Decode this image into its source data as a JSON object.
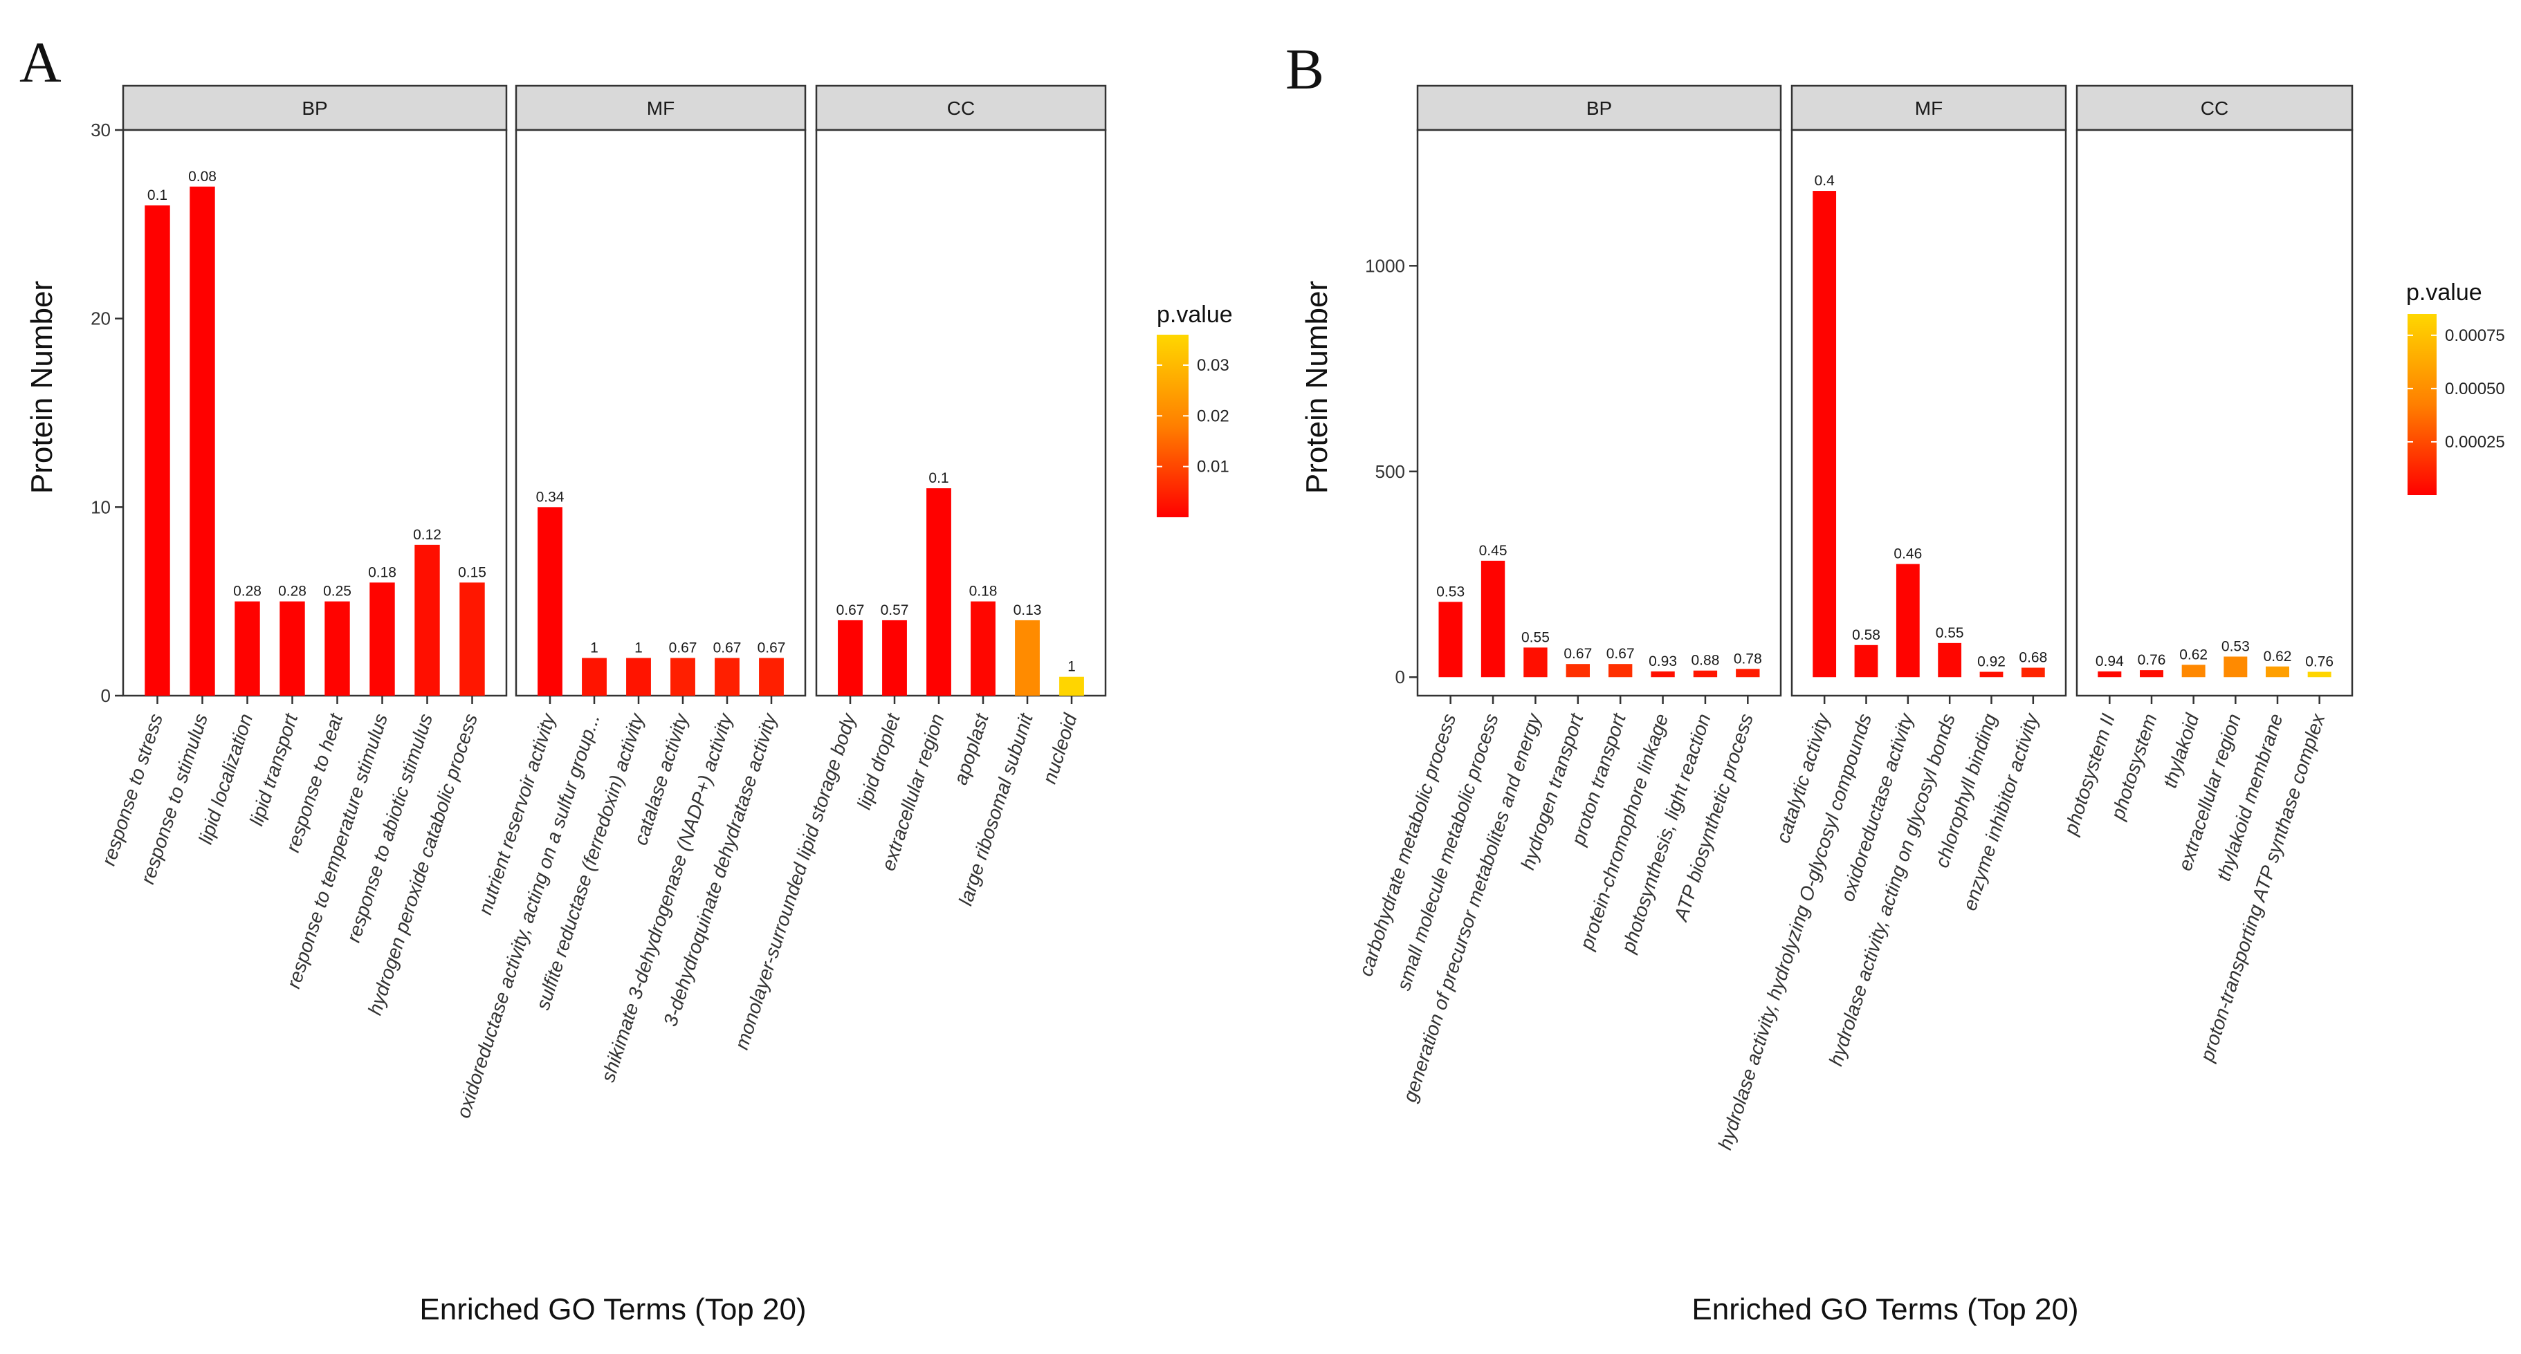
{
  "chart_data": [
    {
      "type": "bar",
      "panel_label": "A",
      "xlabel": "Enriched GO Terms (Top 20)",
      "ylabel": "Protein Number",
      "ylim": [
        0,
        30
      ],
      "yticks": [
        0,
        10,
        20,
        30
      ],
      "legend": {
        "title": "p.value",
        "ticks": [
          0.01,
          0.02,
          0.03
        ],
        "tick_labels": [
          "0.01",
          "0.02",
          "0.03"
        ],
        "range": [
          0.0,
          0.036
        ]
      },
      "facets": [
        {
          "name": "BP",
          "categories": [
            "response to stress",
            "response to stimulus",
            "lipid localization",
            "lipid transport",
            "response to heat",
            "response to temperature stimulus",
            "response to abiotic stimulus",
            "hydrogen peroxide catabolic process"
          ],
          "values": [
            26,
            27,
            5,
            5,
            5,
            6,
            8,
            6
          ],
          "labels": [
            "0.1",
            "0.08",
            "0.28",
            "0.28",
            "0.25",
            "0.18",
            "0.12",
            "0.15"
          ],
          "pvalues": [
            0.0001,
            0.0001,
            0.0003,
            0.0003,
            0.0004,
            0.0006,
            0.0021,
            0.0032
          ]
        },
        {
          "name": "MF",
          "categories": [
            "nutrient reservoir activity",
            "oxidoreductase activity, acting on a sulfur group...",
            "sulfite reductase (ferredoxin) activity",
            "catalase activity",
            "shikimate 3-dehydrogenase (NADP+) activity",
            "3-dehydroquinate dehydratase activity"
          ],
          "values": [
            10,
            2,
            2,
            2,
            2,
            2
          ],
          "labels": [
            "0.34",
            "1",
            "1",
            "0.67",
            "0.67",
            "0.67"
          ],
          "pvalues": [
            0.0002,
            0.0028,
            0.0028,
            0.0044,
            0.0044,
            0.0044
          ]
        },
        {
          "name": "CC",
          "categories": [
            "monolayer-surrounded lipid storage body",
            "lipid droplet",
            "extracellular region",
            "apoplast",
            "large ribosomal subunit",
            "nucleoid"
          ],
          "values": [
            4,
            4,
            11,
            5,
            4,
            1
          ],
          "labels": [
            "0.67",
            "0.57",
            "0.1",
            "0.18",
            "0.13",
            "1"
          ],
          "pvalues": [
            0.0001,
            0.0001,
            0.0002,
            0.0009,
            0.0205,
            0.0355
          ]
        }
      ]
    },
    {
      "type": "bar",
      "panel_label": "B",
      "xlabel": "Enriched GO Terms (Top 20)",
      "ylabel": "Protein Number",
      "ylim": [
        -45,
        1330
      ],
      "yticks": [
        0,
        500,
        1000
      ],
      "legend": {
        "title": "p.value",
        "ticks": [
          0.00025,
          0.0005,
          0.00075
        ],
        "tick_labels": [
          "0.00025",
          "0.00050",
          "0.00075"
        ],
        "range": [
          0.0,
          0.00085
        ]
      },
      "facets": [
        {
          "name": "BP",
          "categories": [
            "carbohydrate metabolic process",
            "small molecule metabolic process",
            "generation of precursor metabolites and energy",
            "hydrogen transport",
            "proton transport",
            "protein-chromophore linkage",
            "photosynthesis, light reaction",
            "ATP biosynthetic process"
          ],
          "values": [
            183,
            283,
            72,
            32,
            32,
            14,
            16,
            20
          ],
          "labels": [
            "0.53",
            "0.45",
            "0.55",
            "0.67",
            "0.67",
            "0.93",
            "0.88",
            "0.78"
          ],
          "pvalues": [
            1e-05,
            1e-05,
            5e-05,
            0.00016,
            0.00016,
            5e-05,
            7e-05,
            9e-05
          ]
        },
        {
          "name": "MF",
          "categories": [
            "catalytic activity",
            "hydrolase activity, hydrolyzing O-glycosyl compounds",
            "oxidoreductase activity",
            "hydrolase activity, acting on glycosyl bonds",
            "chlorophyll binding",
            "enzyme inhibitor activity"
          ],
          "values": [
            1182,
            78,
            275,
            83,
            13,
            23
          ],
          "labels": [
            "0.4",
            "0.58",
            "0.46",
            "0.55",
            "0.92",
            "0.68"
          ],
          "pvalues": [
            1e-05,
            2e-05,
            1e-05,
            2e-05,
            5e-05,
            0.00012
          ]
        },
        {
          "name": "CC",
          "categories": [
            "photosystem II",
            "photosystem",
            "thylakoid",
            "extracellular region",
            "thylakoid membrane",
            "proton-transporting ATP synthase complex"
          ],
          "values": [
            14,
            17,
            30,
            50,
            26,
            13
          ],
          "labels": [
            "0.94",
            "0.76",
            "0.62",
            "0.53",
            "0.62",
            "0.76"
          ],
          "pvalues": [
            2e-05,
            4e-05,
            0.00047,
            0.00048,
            0.00058,
            0.00084
          ]
        }
      ]
    }
  ]
}
